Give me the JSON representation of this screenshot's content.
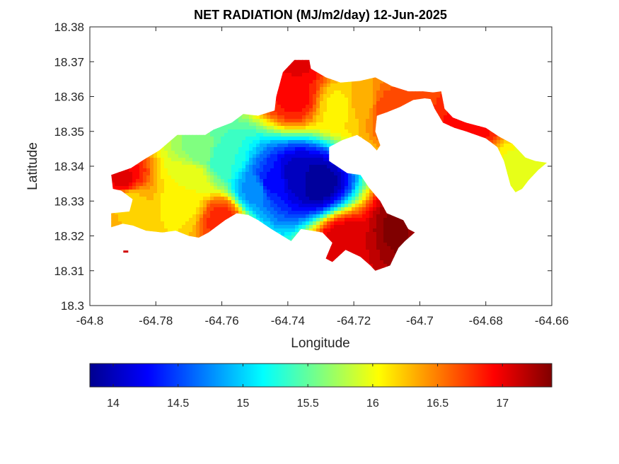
{
  "chart_data": {
    "type": "heatmap",
    "title": "NET RADIATION (MJ/m2/day) 12-Jun-2025",
    "xlabel": "Longitude",
    "ylabel": "Latitude",
    "xlim": [
      -64.8,
      -64.66
    ],
    "ylim": [
      18.3,
      18.38
    ],
    "x_ticks": [
      -64.8,
      -64.78,
      -64.76,
      -64.74,
      -64.72,
      -64.7,
      -64.68,
      -64.66
    ],
    "x_tick_labels": [
      "-64.8",
      "-64.78",
      "-64.76",
      "-64.74",
      "-64.72",
      "-64.7",
      "-64.68",
      "-64.66"
    ],
    "y_ticks": [
      18.3,
      18.31,
      18.32,
      18.33,
      18.34,
      18.35,
      18.36,
      18.37,
      18.38
    ],
    "y_tick_labels": [
      "18.3",
      "18.31",
      "18.32",
      "18.33",
      "18.34",
      "18.35",
      "18.36",
      "18.37",
      "18.38"
    ],
    "grid": false,
    "colormap": "jet",
    "colorbar": {
      "orientation": "horizontal",
      "location": "below",
      "range": [
        13.82,
        17.38
      ],
      "ticks": [
        14,
        14.5,
        15,
        15.5,
        16,
        16.5,
        17
      ],
      "tick_labels": [
        "14",
        "14.5",
        "15",
        "15.5",
        "16",
        "16.5",
        "17"
      ]
    },
    "region": {
      "main_island_outline": [
        [
          -64.7935,
          18.3375
        ],
        [
          -64.7875,
          18.3395
        ],
        [
          -64.7835,
          18.342
        ],
        [
          -64.779,
          18.3445
        ],
        [
          -64.7735,
          18.349
        ],
        [
          -64.765,
          18.349
        ],
        [
          -64.7625,
          18.3505
        ],
        [
          -64.757,
          18.3525
        ],
        [
          -64.7535,
          18.355
        ],
        [
          -64.749,
          18.3545
        ],
        [
          -64.744,
          18.356
        ],
        [
          -64.7435,
          18.36
        ],
        [
          -64.7415,
          18.367
        ],
        [
          -64.738,
          18.3705
        ],
        [
          -64.7335,
          18.3705
        ],
        [
          -64.733,
          18.368
        ],
        [
          -64.7285,
          18.3655
        ],
        [
          -64.724,
          18.364
        ],
        [
          -64.718,
          18.3645
        ],
        [
          -64.7135,
          18.3655
        ],
        [
          -64.7085,
          18.363
        ],
        [
          -64.7035,
          18.3615
        ],
        [
          -64.699,
          18.3615
        ],
        [
          -64.694,
          18.361
        ],
        [
          -64.6945,
          18.359
        ],
        [
          -64.6985,
          18.3595
        ],
        [
          -64.702,
          18.359
        ],
        [
          -64.706,
          18.357
        ],
        [
          -64.71,
          18.3555
        ],
        [
          -64.713,
          18.3545
        ],
        [
          -64.7135,
          18.35
        ],
        [
          -64.712,
          18.346
        ],
        [
          -64.713,
          18.3445
        ],
        [
          -64.715,
          18.3465
        ],
        [
          -64.719,
          18.349
        ],
        [
          -64.7235,
          18.3475
        ],
        [
          -64.7275,
          18.3455
        ],
        [
          -64.7275,
          18.3415
        ],
        [
          -64.722,
          18.338
        ],
        [
          -64.718,
          18.3375
        ],
        [
          -64.7155,
          18.334
        ],
        [
          -64.712,
          18.33
        ],
        [
          -64.71,
          18.3265
        ],
        [
          -64.705,
          18.3245
        ],
        [
          -64.7035,
          18.322
        ],
        [
          -64.7015,
          18.321
        ],
        [
          -64.7045,
          18.3185
        ],
        [
          -64.7065,
          18.3165
        ],
        [
          -64.709,
          18.3115
        ],
        [
          -64.7135,
          18.31
        ],
        [
          -64.715,
          18.3115
        ],
        [
          -64.718,
          18.314
        ],
        [
          -64.7225,
          18.316
        ],
        [
          -64.7265,
          18.3125
        ],
        [
          -64.7285,
          18.3135
        ],
        [
          -64.7265,
          18.318
        ],
        [
          -64.7295,
          18.321
        ],
        [
          -64.736,
          18.322
        ],
        [
          -64.739,
          18.3185
        ],
        [
          -64.745,
          18.322
        ],
        [
          -64.749,
          18.3245
        ],
        [
          -64.752,
          18.326
        ],
        [
          -64.7555,
          18.3265
        ],
        [
          -64.759,
          18.3245
        ],
        [
          -64.764,
          18.321
        ],
        [
          -64.767,
          18.3195
        ],
        [
          -64.77,
          18.32
        ],
        [
          -64.774,
          18.3215
        ],
        [
          -64.778,
          18.321
        ],
        [
          -64.783,
          18.3215
        ],
        [
          -64.787,
          18.323
        ],
        [
          -64.79,
          18.3235
        ],
        [
          -64.7935,
          18.3225
        ],
        [
          -64.7935,
          18.3265
        ],
        [
          -64.788,
          18.327
        ],
        [
          -64.787,
          18.3305
        ],
        [
          -64.7905,
          18.333
        ],
        [
          -64.793,
          18.3335
        ],
        [
          -64.7935,
          18.3375
        ]
      ],
      "east_spit_outline": [
        [
          -64.6975,
          18.361
        ],
        [
          -64.6935,
          18.3615
        ],
        [
          -64.6925,
          18.3565
        ],
        [
          -64.69,
          18.354
        ],
        [
          -64.686,
          18.3525
        ],
        [
          -64.68,
          18.351
        ],
        [
          -64.676,
          18.3485
        ],
        [
          -64.672,
          18.3465
        ],
        [
          -64.67,
          18.3445
        ],
        [
          -64.668,
          18.3425
        ],
        [
          -64.665,
          18.3415
        ],
        [
          -64.6615,
          18.341
        ],
        [
          -64.664,
          18.339
        ],
        [
          -64.667,
          18.336
        ],
        [
          -64.669,
          18.3335
        ],
        [
          -64.671,
          18.3325
        ],
        [
          -64.6725,
          18.3345
        ],
        [
          -64.6735,
          18.338
        ],
        [
          -64.6745,
          18.3415
        ],
        [
          -64.6765,
          18.3455
        ],
        [
          -64.68,
          18.348
        ],
        [
          -64.686,
          18.35
        ],
        [
          -64.6895,
          18.351
        ],
        [
          -64.693,
          18.3525
        ],
        [
          -64.6955,
          18.3565
        ],
        [
          -64.6975,
          18.361
        ]
      ],
      "islet": [
        -64.789,
        18.3155
      ]
    },
    "field_features": [
      {
        "x": -64.731,
        "y": 18.3355,
        "value": 13.9
      },
      {
        "x": -64.737,
        "y": 18.337,
        "value": 14.0
      },
      {
        "x": -64.745,
        "y": 18.335,
        "value": 14.3
      },
      {
        "x": -64.75,
        "y": 18.333,
        "value": 14.8
      },
      {
        "x": -64.76,
        "y": 18.342,
        "value": 15.3
      },
      {
        "x": -64.766,
        "y": 18.344,
        "value": 15.6
      },
      {
        "x": -64.769,
        "y": 18.337,
        "value": 16.0
      },
      {
        "x": -64.772,
        "y": 18.329,
        "value": 16.1
      },
      {
        "x": -64.788,
        "y": 18.33,
        "value": 16.2
      },
      {
        "x": -64.79,
        "y": 18.336,
        "value": 17.0
      },
      {
        "x": -64.724,
        "y": 18.357,
        "value": 16.1
      },
      {
        "x": -64.718,
        "y": 18.358,
        "value": 16.3
      },
      {
        "x": -64.671,
        "y": 18.3395,
        "value": 16.0
      },
      {
        "x": -64.705,
        "y": 18.322,
        "value": 17.4
      },
      {
        "x": -64.702,
        "y": 18.322,
        "value": 17.3
      },
      {
        "x": -64.723,
        "y": 18.318,
        "value": 17.1
      },
      {
        "x": -64.737,
        "y": 18.37,
        "value": 17.0
      },
      {
        "x": -64.738,
        "y": 18.36,
        "value": 16.9
      },
      {
        "x": -64.76,
        "y": 18.325,
        "value": 16.8
      },
      {
        "x": -64.71,
        "y": 18.356,
        "value": 16.7
      },
      {
        "x": -64.685,
        "y": 18.35,
        "value": 16.9
      }
    ]
  }
}
